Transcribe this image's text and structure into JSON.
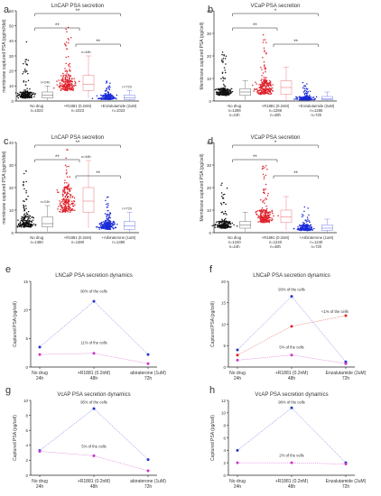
{
  "panels": [
    {
      "letter": "a",
      "kind": "dot",
      "chart_data": {
        "type": "scatter",
        "title": "LnCAP PSA secretion",
        "ylabel": "membrane captured PSA (pg/ml/dot)",
        "ylim": [
          0,
          60
        ],
        "yticks": [
          0,
          10,
          20,
          30,
          40,
          50,
          60
        ],
        "categories": [
          {
            "lines": [
              "No drug",
              "n=1023"
            ],
            "time_label": "n=24h",
            "color": "#111111",
            "median": 4,
            "q1": 2,
            "q3": 6,
            "wlo": 0.5,
            "whi": 10,
            "max": 42
          },
          {
            "lines": [
              "+R1881 (0.2nM)",
              "n=1023"
            ],
            "time_label": "n=48h",
            "color": "#e0202a",
            "median": 11,
            "q1": 7,
            "q3": 17,
            "wlo": 2,
            "whi": 30,
            "max": 52
          },
          {
            "lines": [
              "+Enzalutamide (2uM)",
              "n=1023"
            ],
            "time_label": "n=72h",
            "color": "#1a2ad8",
            "median": 2,
            "q1": 1,
            "q3": 4,
            "wlo": 0.2,
            "whi": 7,
            "max": 14
          }
        ],
        "brackets": [
          {
            "from": 0,
            "to": 2,
            "label": "**"
          },
          {
            "from": 0,
            "to": 1,
            "label": "**"
          },
          {
            "from": 1,
            "to": 2,
            "label": "**"
          }
        ]
      }
    },
    {
      "letter": "b",
      "kind": "dot",
      "chart_data": {
        "type": "scatter",
        "title": "VCaP PSA secretion",
        "ylabel": "Membrane captured PSA (pg/cell)",
        "ylim": [
          0,
          40
        ],
        "yticks": [
          0,
          10,
          20,
          30,
          40
        ],
        "categories": [
          {
            "lines": [
              "No drug",
              "n=1286",
              "n=24h"
            ],
            "time_label": "",
            "color": "#111111",
            "median": 4,
            "q1": 2.5,
            "q3": 5.5,
            "wlo": 0.5,
            "whi": 9,
            "max": 24
          },
          {
            "lines": [
              "+R1881 (0.2nM)",
              "n=1286",
              "n=48h"
            ],
            "time_label": "",
            "color": "#e0202a",
            "median": 6,
            "q1": 3,
            "q3": 9,
            "wlo": 0.5,
            "whi": 15,
            "max": 30
          },
          {
            "lines": [
              "+Enzalutamide (2uM)",
              "n=1286",
              "n=72h"
            ],
            "time_label": "",
            "color": "#1a2ad8",
            "median": 1,
            "q1": 0.5,
            "q3": 2,
            "wlo": 0.1,
            "whi": 4,
            "max": 9
          }
        ],
        "brackets": [
          {
            "from": 0,
            "to": 2,
            "label": "*"
          },
          {
            "from": 0,
            "to": 1,
            "label": "**"
          },
          {
            "from": 1,
            "to": 2,
            "label": "**"
          }
        ]
      }
    },
    {
      "letter": "c",
      "kind": "dot",
      "chart_data": {
        "type": "scatter",
        "title": "LnCAP PSA secretion",
        "ylabel": "membrane captured PSA (pg/ml/dot)",
        "ylim": [
          0,
          40
        ],
        "yticks": [
          0,
          10,
          20,
          30,
          40
        ],
        "categories": [
          {
            "lines": [
              "No drug",
              "n=1380"
            ],
            "time_label": "n=24h",
            "color": "#111111",
            "median": 4,
            "q1": 2.5,
            "q3": 7,
            "wlo": 0.5,
            "whi": 12,
            "max": 28
          },
          {
            "lines": [
              "+R1881 (0.2nM)",
              "n=1380"
            ],
            "time_label": "n=48h",
            "color": "#e0202a",
            "median": 14,
            "q1": 9,
            "q3": 20,
            "wlo": 2,
            "whi": 32,
            "max": 38
          },
          {
            "lines": [
              "+Arbiraterone (1uM)",
              "n=1380"
            ],
            "time_label": "n=72h",
            "color": "#1a2ad8",
            "median": 3,
            "q1": 1.5,
            "q3": 5,
            "wlo": 0.3,
            "whi": 9,
            "max": 16
          }
        ],
        "brackets": [
          {
            "from": 0,
            "to": 2,
            "label": "**"
          },
          {
            "from": 0,
            "to": 1,
            "label": "**"
          },
          {
            "from": 1,
            "to": 2,
            "label": "**"
          }
        ]
      }
    },
    {
      "letter": "d",
      "kind": "dot",
      "chart_data": {
        "type": "scatter",
        "title": "VCaP PSA secretion",
        "ylabel": "Membrane captured PSA (pg/cell)",
        "ylim": [
          0,
          40
        ],
        "yticks": [
          0,
          10,
          20,
          30,
          40
        ],
        "categories": [
          {
            "lines": [
              "No drug",
              "n=1240",
              "n=24h"
            ],
            "time_label": "",
            "color": "#111111",
            "median": 3.5,
            "q1": 2,
            "q3": 5,
            "wlo": 0.5,
            "whi": 9,
            "max": 22
          },
          {
            "lines": [
              "+R1881 (0.2nM)",
              "n=1240",
              "n=48h"
            ],
            "time_label": "",
            "color": "#e0202a",
            "median": 7,
            "q1": 4.5,
            "q3": 10,
            "wlo": 1,
            "whi": 16,
            "max": 34
          },
          {
            "lines": [
              "+Arbiraterone (1uM)",
              "n=1240",
              "n=72h"
            ],
            "time_label": "",
            "color": "#1a2ad8",
            "median": 2,
            "q1": 1,
            "q3": 3.5,
            "wlo": 0.2,
            "whi": 6,
            "max": 12
          }
        ],
        "brackets": [
          {
            "from": 0,
            "to": 2,
            "label": "*"
          },
          {
            "from": 0,
            "to": 1,
            "label": "**"
          },
          {
            "from": 1,
            "to": 2,
            "label": "**"
          }
        ]
      }
    },
    {
      "letter": "e",
      "kind": "line",
      "chart_data": {
        "type": "line",
        "title": "LNCaP PSA secretion dynamics",
        "ylabel": "Captured PSA (pg/cell)",
        "ylim": [
          0,
          15
        ],
        "yticks": [
          0,
          5,
          10,
          15
        ],
        "x": [
          [
            "No drug",
            "24h"
          ],
          [
            "+R1881 (0.2nM)",
            "48h"
          ],
          [
            "abiraterone (1uM)",
            "72h"
          ]
        ],
        "series": [
          {
            "values": [
              3.5,
              11.5,
              2.2
            ],
            "color": "#2233cc"
          },
          {
            "values": [
              2.2,
              2.4,
              0.6
            ],
            "color": "#cc33cc"
          }
        ],
        "annotations": [
          {
            "text": "90% of the cells",
            "at_x": 1,
            "at_y": 13.0
          },
          {
            "text": "11% of the cells",
            "at_x": 1,
            "at_y": 4.0
          }
        ]
      }
    },
    {
      "letter": "f",
      "kind": "line",
      "chart_data": {
        "type": "line",
        "title": "LNCaP PSA secretion dynamics",
        "ylabel": "Captured PSA (pg/cell)",
        "ylim": [
          0,
          20
        ],
        "yticks": [
          0,
          5,
          10,
          15,
          20
        ],
        "x": [
          [
            "No drug",
            "24h"
          ],
          [
            "+R1881 (0.2nM)",
            "48h"
          ],
          [
            "Enzalutamide (2uM)",
            "72h"
          ]
        ],
        "series": [
          {
            "values": [
              4.0,
              16.5,
              1.2
            ],
            "color": "#2233cc"
          },
          {
            "values": [
              2.8,
              9.5,
              12.0
            ],
            "color": "#dd2222"
          },
          {
            "values": [
              1.6,
              2.8,
              0.8
            ],
            "color": "#cc33cc"
          }
        ],
        "annotations": [
          {
            "text": "93% of the cells",
            "at_x": 1,
            "at_y": 17.8
          },
          {
            "text": "<1% of the cells",
            "at_x": 1.8,
            "at_y": 12.6
          },
          {
            "text": "5% of the cells",
            "at_x": 1,
            "at_y": 4.3
          }
        ]
      }
    },
    {
      "letter": "g",
      "kind": "line",
      "chart_data": {
        "type": "line",
        "title": "VcAP PSA secretion dynamics",
        "ylabel": "Captured PSA (pg/cell)",
        "ylim": [
          0,
          10
        ],
        "yticks": [
          0,
          2,
          4,
          6,
          8,
          10
        ],
        "x": [
          [
            "No drug",
            "24h"
          ],
          [
            "+R1881 (0.2nM)",
            "48h"
          ],
          [
            "abiraterone (1uM)",
            "72h"
          ]
        ],
        "series": [
          {
            "values": [
              3.3,
              8.9,
              2.1
            ],
            "color": "#2233cc"
          },
          {
            "values": [
              3.2,
              2.6,
              0.6
            ],
            "color": "#cc33cc"
          }
        ],
        "annotations": [
          {
            "text": "95% of the cells",
            "at_x": 1,
            "at_y": 9.6
          },
          {
            "text": "5% of the cells",
            "at_x": 1,
            "at_y": 3.7
          }
        ]
      }
    },
    {
      "letter": "h",
      "kind": "line",
      "chart_data": {
        "type": "line",
        "title": "VcAP PSA secretion dynamics",
        "ylabel": "Captured PSA (pg/cell)",
        "ylim": [
          0,
          12
        ],
        "yticks": [
          0,
          2,
          4,
          6,
          8,
          10,
          12
        ],
        "x": [
          [
            "No drug",
            "24h"
          ],
          [
            "+R1881 (0.2nM)",
            "48h"
          ],
          [
            "Enzalutamide (2uM)",
            "72h"
          ]
        ],
        "series": [
          {
            "values": [
              4.0,
              10.8,
              2.0
            ],
            "color": "#2233cc"
          },
          {
            "values": [
              2.0,
              2.0,
              1.8
            ],
            "color": "#cc33cc"
          }
        ],
        "annotations": [
          {
            "text": "98% of the cells",
            "at_x": 1,
            "at_y": 11.5
          },
          {
            "text": "2% of the cells",
            "at_x": 1,
            "at_y": 3.0
          }
        ]
      }
    }
  ]
}
